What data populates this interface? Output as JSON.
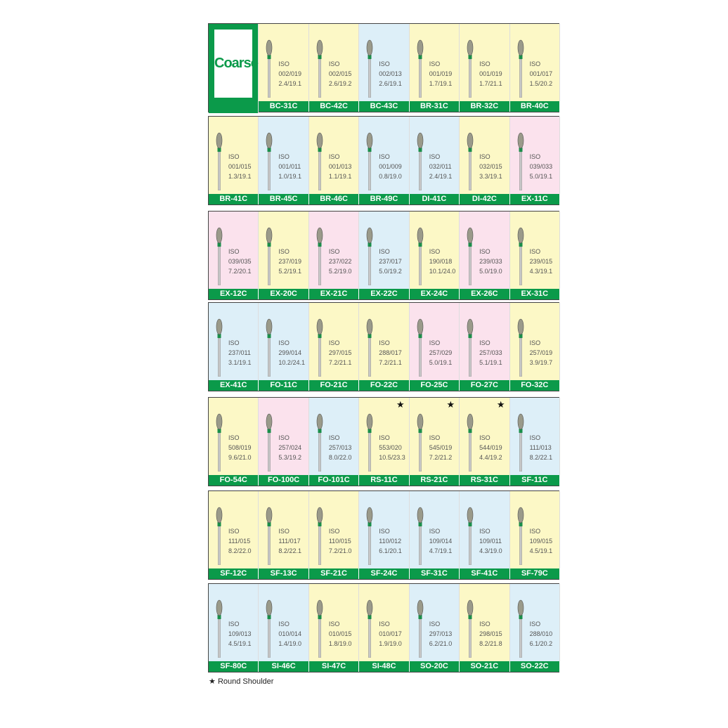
{
  "header": {
    "title": "Coarse"
  },
  "iso_label": "ISO",
  "rows": [
    [
      {
        "code": "BC-31C",
        "iso": "002/019",
        "size": "2.4/19.1",
        "bg": "#fcf8c6"
      },
      {
        "code": "BC-42C",
        "iso": "002/015",
        "size": "2.6/19.2",
        "bg": "#fcf8c6"
      },
      {
        "code": "BC-43C",
        "iso": "002/013",
        "size": "2.6/19.1",
        "bg": "#ddeff8"
      },
      {
        "code": "BR-31C",
        "iso": "001/019",
        "size": "1.7/19.1",
        "bg": "#fcf8c6"
      },
      {
        "code": "BR-32C",
        "iso": "001/019",
        "size": "1.7/21.1",
        "bg": "#fcf8c6"
      },
      {
        "code": "BR-40C",
        "iso": "001/017",
        "size": "1.5/20.2",
        "bg": "#fcf8c6"
      }
    ],
    [
      {
        "code": "BR-41C",
        "iso": "001/015",
        "size": "1.3/19.1",
        "bg": "#fcf8c6"
      },
      {
        "code": "BR-45C",
        "iso": "001/011",
        "size": "1.0/19.1",
        "bg": "#ddeff8"
      },
      {
        "code": "BR-46C",
        "iso": "001/013",
        "size": "1.1/19.1",
        "bg": "#fcf8c6"
      },
      {
        "code": "BR-49C",
        "iso": "001/009",
        "size": "0.8/19.0",
        "bg": "#ddeff8"
      },
      {
        "code": "DI-41C",
        "iso": "032/011",
        "size": "2.4/19.1",
        "bg": "#ddeff8"
      },
      {
        "code": "DI-42C",
        "iso": "032/015",
        "size": "3.3/19.1",
        "bg": "#fcf8c6"
      },
      {
        "code": "EX-11C",
        "iso": "039/033",
        "size": "5.0/19.1",
        "bg": "#fbe2ed"
      }
    ],
    [
      {
        "code": "EX-12C",
        "iso": "039/035",
        "size": "7.2/20.1",
        "bg": "#fbe2ed"
      },
      {
        "code": "EX-20C",
        "iso": "237/019",
        "size": "5.2/19.1",
        "bg": "#fcf8c6"
      },
      {
        "code": "EX-21C",
        "iso": "237/022",
        "size": "5.2/19.0",
        "bg": "#fbe2ed"
      },
      {
        "code": "EX-22C",
        "iso": "237/017",
        "size": "5.0/19.2",
        "bg": "#ddeff8"
      },
      {
        "code": "EX-24C",
        "iso": "190/018",
        "size": "10.1/24.0",
        "bg": "#fcf8c6"
      },
      {
        "code": "EX-26C",
        "iso": "239/033",
        "size": "5.0/19.0",
        "bg": "#fbe2ed"
      },
      {
        "code": "EX-31C",
        "iso": "239/015",
        "size": "4.3/19.1",
        "bg": "#fcf8c6"
      }
    ],
    [
      {
        "code": "EX-41C",
        "iso": "237/011",
        "size": "3.1/19.1",
        "bg": "#ddeff8"
      },
      {
        "code": "FO-11C",
        "iso": "299/014",
        "size": "10.2/24.1",
        "bg": "#ddeff8"
      },
      {
        "code": "FO-21C",
        "iso": "297/015",
        "size": "7.2/21.1",
        "bg": "#fcf8c6"
      },
      {
        "code": "FO-22C",
        "iso": "288/017",
        "size": "7.2/21.1",
        "bg": "#fcf8c6"
      },
      {
        "code": "FO-25C",
        "iso": "257/029",
        "size": "5.0/19.1",
        "bg": "#fbe2ed"
      },
      {
        "code": "FO-27C",
        "iso": "257/033",
        "size": "5.1/19.1",
        "bg": "#fbe2ed"
      },
      {
        "code": "FO-32C",
        "iso": "257/019",
        "size": "3.9/19.7",
        "bg": "#fcf8c6"
      }
    ],
    [
      {
        "code": "FO-54C",
        "iso": "508/019",
        "size": "9.6/21.0",
        "bg": "#fcf8c6"
      },
      {
        "code": "FO-100C",
        "iso": "257/024",
        "size": "5.3/19.2",
        "bg": "#fbe2ed"
      },
      {
        "code": "FO-101C",
        "iso": "257/013",
        "size": "8.0/22.0",
        "bg": "#ddeff8"
      },
      {
        "code": "RS-11C",
        "iso": "553/020",
        "size": "10.5/23.3",
        "bg": "#fcf8c6",
        "mark": "★"
      },
      {
        "code": "RS-21C",
        "iso": "545/019",
        "size": "7.2/21.2",
        "bg": "#fcf8c6",
        "mark": "★"
      },
      {
        "code": "RS-31C",
        "iso": "544/019",
        "size": "4.4/19.2",
        "bg": "#fcf8c6",
        "mark": "★"
      },
      {
        "code": "SF-11C",
        "iso": "111/013",
        "size": "8.2/22.1",
        "bg": "#ddeff8"
      }
    ],
    [
      {
        "code": "SF-12C",
        "iso": "111/015",
        "size": "8.2/22.0",
        "bg": "#fcf8c6"
      },
      {
        "code": "SF-13C",
        "iso": "111/017",
        "size": "8.2/22.1",
        "bg": "#fcf8c6"
      },
      {
        "code": "SF-21C",
        "iso": "110/015",
        "size": "7.2/21.0",
        "bg": "#fcf8c6"
      },
      {
        "code": "SF-24C",
        "iso": "110/012",
        "size": "6.1/20.1",
        "bg": "#ddeff8"
      },
      {
        "code": "SF-31C",
        "iso": "109/014",
        "size": "4.7/19.1",
        "bg": "#ddeff8"
      },
      {
        "code": "SF-41C",
        "iso": "109/011",
        "size": "4.3/19.0",
        "bg": "#ddeff8"
      },
      {
        "code": "SF-79C",
        "iso": "109/015",
        "size": "4.5/19.1",
        "bg": "#fcf8c6"
      }
    ],
    [
      {
        "code": "SF-80C",
        "iso": "109/013",
        "size": "4.5/19.1",
        "bg": "#ddeff8"
      },
      {
        "code": "SI-46C",
        "iso": "010/014",
        "size": "1.4/19.0",
        "bg": "#ddeff8"
      },
      {
        "code": "SI-47C",
        "iso": "010/015",
        "size": "1.8/19.0",
        "bg": "#fcf8c6"
      },
      {
        "code": "SI-48C",
        "iso": "010/017",
        "size": "1.9/19.0",
        "bg": "#fcf8c6"
      },
      {
        "code": "SO-20C",
        "iso": "297/013",
        "size": "6.2/21.0",
        "bg": "#ddeff8"
      },
      {
        "code": "SO-21C",
        "iso": "298/015",
        "size": "8.2/21.8",
        "bg": "#fcf8c6"
      },
      {
        "code": "SO-22C",
        "iso": "288/010",
        "size": "6.1/20.2",
        "bg": "#ddeff8"
      }
    ]
  ],
  "legend": {
    "symbol": "★",
    "text": "Round Shoulder"
  }
}
